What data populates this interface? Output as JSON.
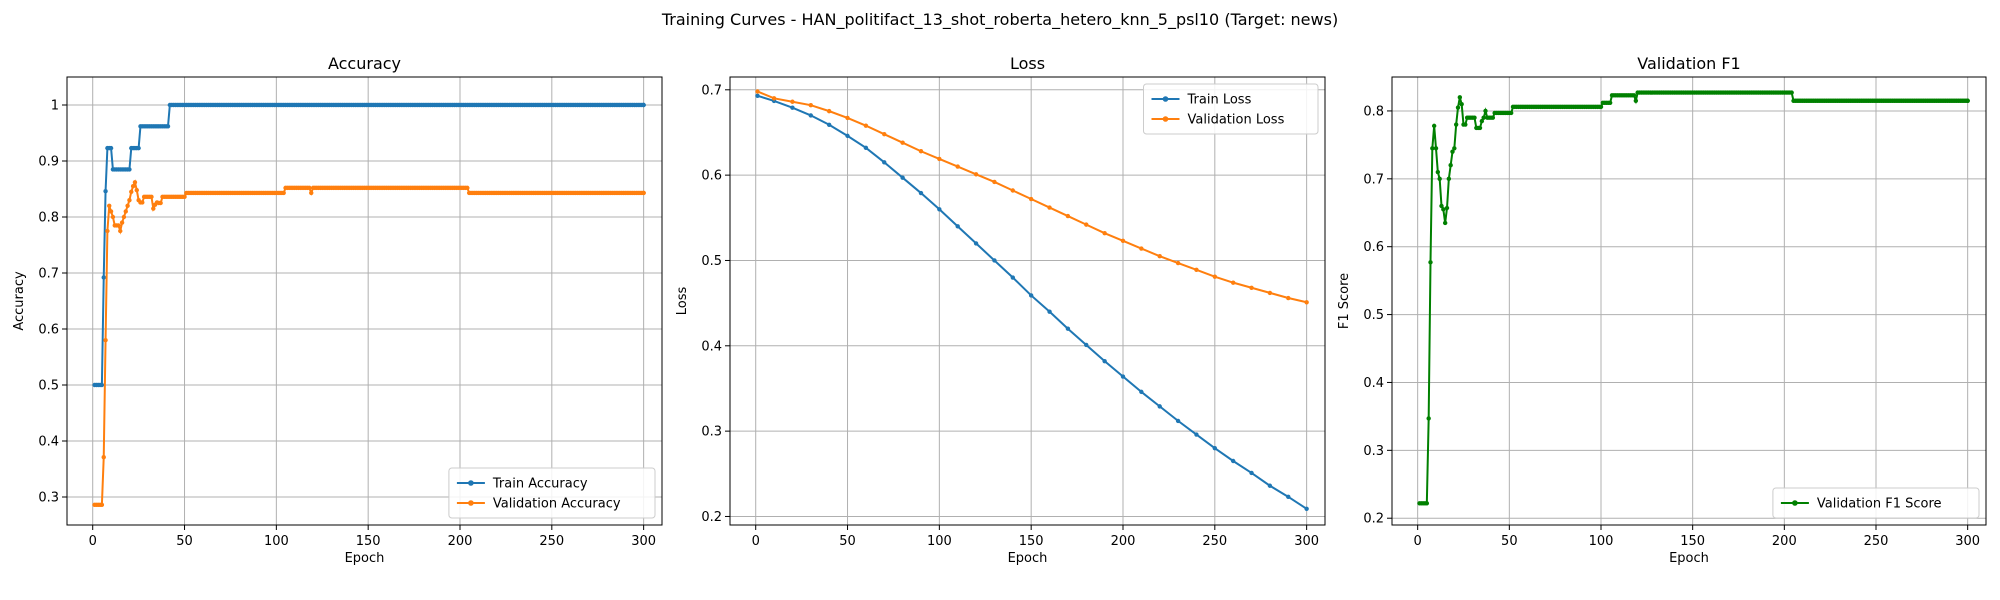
{
  "figure": {
    "suptitle": "Training Curves - HAN_politifact_13_shot_roberta_hetero_knn_5_psl10 (Target: news)"
  },
  "colors": {
    "blue": "#1f77b4",
    "orange": "#ff7f0e",
    "green": "#008000",
    "grid": "#b0b0b0"
  },
  "chart_data": [
    {
      "type": "line",
      "title": "Accuracy",
      "xlabel": "Epoch",
      "ylabel": "Accuracy",
      "xlim": [
        -14,
        310
      ],
      "ylim": [
        0.25,
        1.05
      ],
      "xticks": [
        0,
        50,
        100,
        150,
        200,
        250,
        300
      ],
      "yticks": [
        0.3,
        0.4,
        0.5,
        0.6,
        0.7,
        0.8,
        0.9,
        1.0
      ],
      "grid": true,
      "legend": "bottom-right",
      "series": [
        {
          "name": "Train Accuracy",
          "color": "#1f77b4",
          "steps": [
            [
              1,
              0.5
            ],
            [
              5,
              0.5
            ],
            [
              6,
              0.692
            ],
            [
              7,
              0.846
            ],
            [
              8,
              0.923
            ],
            [
              10,
              0.923
            ],
            [
              11,
              0.885
            ],
            [
              20,
              0.885
            ],
            [
              21,
              0.923
            ],
            [
              25,
              0.923
            ],
            [
              26,
              0.962
            ],
            [
              41,
              0.962
            ],
            [
              42,
              1.0
            ],
            [
              300,
              1.0
            ]
          ]
        },
        {
          "name": "Validation Accuracy",
          "color": "#ff7f0e",
          "steps": [
            [
              1,
              0.286
            ],
            [
              5,
              0.286
            ],
            [
              6,
              0.371
            ],
            [
              7,
              0.58
            ],
            [
              8,
              0.775
            ],
            [
              9,
              0.82
            ],
            [
              10,
              0.81
            ],
            [
              11,
              0.8
            ],
            [
              12,
              0.785
            ],
            [
              14,
              0.785
            ],
            [
              15,
              0.775
            ],
            [
              16,
              0.79
            ],
            [
              17,
              0.8
            ],
            [
              18,
              0.81
            ],
            [
              19,
              0.82
            ],
            [
              20,
              0.83
            ],
            [
              21,
              0.845
            ],
            [
              22,
              0.855
            ],
            [
              23,
              0.862
            ],
            [
              24,
              0.848
            ],
            [
              25,
              0.83
            ],
            [
              26,
              0.826
            ],
            [
              28,
              0.836
            ],
            [
              32,
              0.836
            ],
            [
              33,
              0.815
            ],
            [
              34,
              0.822
            ],
            [
              35,
              0.826
            ],
            [
              36,
              0.825
            ],
            [
              38,
              0.836
            ],
            [
              50,
              0.836
            ],
            [
              51,
              0.843
            ],
            [
              104,
              0.843
            ],
            [
              105,
              0.852
            ],
            [
              118,
              0.852
            ],
            [
              119,
              0.843
            ],
            [
              120,
              0.852
            ],
            [
              204,
              0.852
            ],
            [
              205,
              0.843
            ],
            [
              300,
              0.843
            ]
          ]
        }
      ]
    },
    {
      "type": "line",
      "title": "Loss",
      "xlabel": "Epoch",
      "ylabel": "Loss",
      "xlim": [
        -14,
        310
      ],
      "ylim": [
        0.19,
        0.715
      ],
      "xticks": [
        0,
        50,
        100,
        150,
        200,
        250,
        300
      ],
      "yticks": [
        0.2,
        0.3,
        0.4,
        0.5,
        0.6,
        0.7
      ],
      "grid": true,
      "legend": "top-right",
      "series": [
        {
          "name": "Train Loss",
          "color": "#1f77b4",
          "points": [
            [
              1,
              0.693
            ],
            [
              10,
              0.687
            ],
            [
              20,
              0.679
            ],
            [
              30,
              0.67
            ],
            [
              40,
              0.659
            ],
            [
              50,
              0.646
            ],
            [
              60,
              0.632
            ],
            [
              70,
              0.615
            ],
            [
              80,
              0.597
            ],
            [
              90,
              0.579
            ],
            [
              100,
              0.56
            ],
            [
              110,
              0.54
            ],
            [
              120,
              0.52
            ],
            [
              130,
              0.5
            ],
            [
              140,
              0.48
            ],
            [
              150,
              0.459
            ],
            [
              160,
              0.44
            ],
            [
              170,
              0.42
            ],
            [
              180,
              0.401
            ],
            [
              190,
              0.382
            ],
            [
              200,
              0.364
            ],
            [
              210,
              0.346
            ],
            [
              220,
              0.329
            ],
            [
              230,
              0.312
            ],
            [
              240,
              0.296
            ],
            [
              250,
              0.28
            ],
            [
              260,
              0.265
            ],
            [
              270,
              0.251
            ],
            [
              280,
              0.236
            ],
            [
              290,
              0.223
            ],
            [
              300,
              0.209
            ]
          ]
        },
        {
          "name": "Validation Loss",
          "color": "#ff7f0e",
          "points": [
            [
              1,
              0.698
            ],
            [
              10,
              0.69
            ],
            [
              20,
              0.686
            ],
            [
              30,
              0.682
            ],
            [
              40,
              0.675
            ],
            [
              50,
              0.667
            ],
            [
              60,
              0.658
            ],
            [
              70,
              0.648
            ],
            [
              80,
              0.638
            ],
            [
              90,
              0.628
            ],
            [
              100,
              0.619
            ],
            [
              110,
              0.61
            ],
            [
              120,
              0.601
            ],
            [
              130,
              0.592
            ],
            [
              140,
              0.582
            ],
            [
              150,
              0.572
            ],
            [
              160,
              0.562
            ],
            [
              170,
              0.552
            ],
            [
              180,
              0.542
            ],
            [
              190,
              0.532
            ],
            [
              200,
              0.523
            ],
            [
              210,
              0.514
            ],
            [
              220,
              0.505
            ],
            [
              230,
              0.497
            ],
            [
              240,
              0.489
            ],
            [
              250,
              0.481
            ],
            [
              260,
              0.474
            ],
            [
              270,
              0.468
            ],
            [
              280,
              0.462
            ],
            [
              290,
              0.456
            ],
            [
              300,
              0.451
            ]
          ]
        }
      ]
    },
    {
      "type": "line",
      "title": "Validation F1",
      "xlabel": "Epoch",
      "ylabel": "F1 Score",
      "xlim": [
        -14,
        310
      ],
      "ylim": [
        0.19,
        0.85
      ],
      "xticks": [
        0,
        50,
        100,
        150,
        200,
        250,
        300
      ],
      "yticks": [
        0.2,
        0.3,
        0.4,
        0.5,
        0.6,
        0.7,
        0.8
      ],
      "grid": true,
      "legend": "bottom-right",
      "series": [
        {
          "name": "Validation F1 Score",
          "color": "#008000",
          "steps": [
            [
              1,
              0.222
            ],
            [
              5,
              0.222
            ],
            [
              6,
              0.347
            ],
            [
              7,
              0.577
            ],
            [
              8,
              0.745
            ],
            [
              9,
              0.778
            ],
            [
              10,
              0.745
            ],
            [
              11,
              0.71
            ],
            [
              12,
              0.7
            ],
            [
              13,
              0.66
            ],
            [
              14,
              0.655
            ],
            [
              15,
              0.635
            ],
            [
              16,
              0.657
            ],
            [
              17,
              0.7
            ],
            [
              18,
              0.72
            ],
            [
              19,
              0.74
            ],
            [
              20,
              0.745
            ],
            [
              21,
              0.78
            ],
            [
              22,
              0.805
            ],
            [
              23,
              0.82
            ],
            [
              24,
              0.81
            ],
            [
              25,
              0.78
            ],
            [
              27,
              0.79
            ],
            [
              31,
              0.79
            ],
            [
              32,
              0.775
            ],
            [
              34,
              0.775
            ],
            [
              35,
              0.785
            ],
            [
              36,
              0.79
            ],
            [
              37,
              0.8
            ],
            [
              38,
              0.79
            ],
            [
              41,
              0.79
            ],
            [
              42,
              0.797
            ],
            [
              51,
              0.797
            ],
            [
              52,
              0.806
            ],
            [
              100,
              0.806
            ],
            [
              101,
              0.812
            ],
            [
              105,
              0.812
            ],
            [
              106,
              0.823
            ],
            [
              118,
              0.823
            ],
            [
              119,
              0.815
            ],
            [
              120,
              0.827
            ],
            [
              204,
              0.827
            ],
            [
              205,
              0.815
            ],
            [
              300,
              0.815
            ]
          ]
        }
      ]
    }
  ]
}
